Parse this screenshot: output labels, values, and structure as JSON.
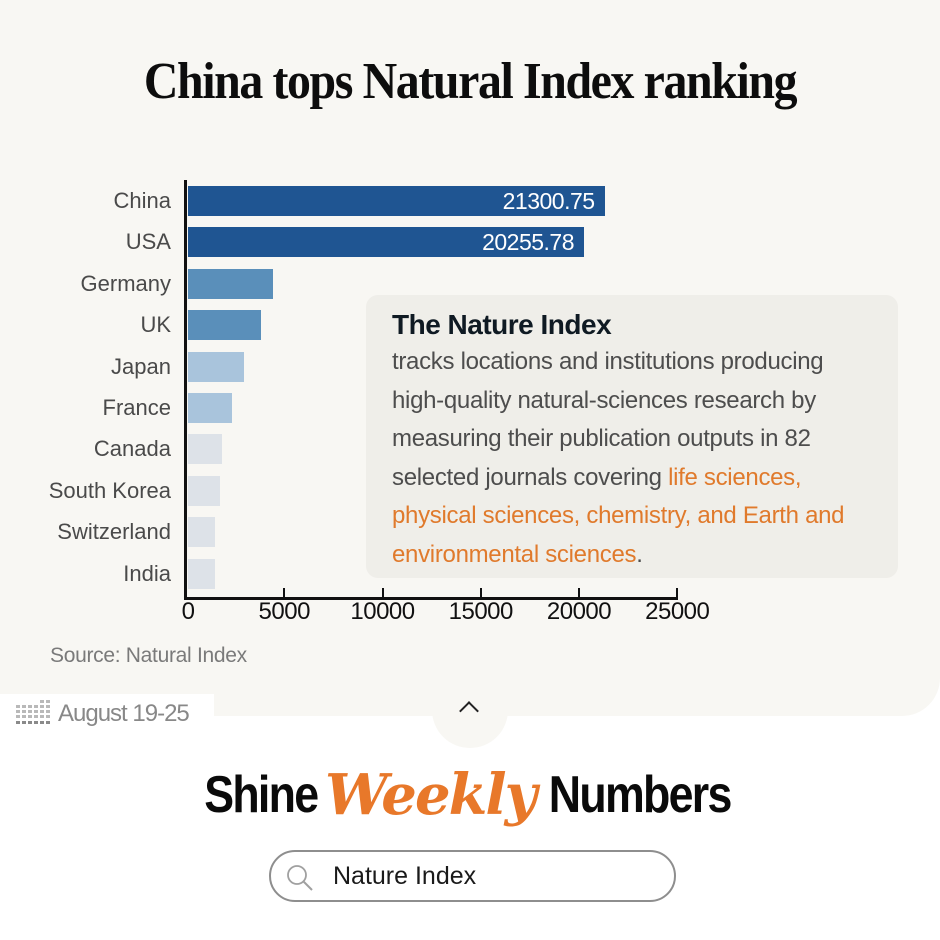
{
  "title": "China tops Natural Index ranking",
  "chart_data": {
    "type": "bar",
    "orientation": "horizontal",
    "title": "China tops Natural Index ranking",
    "xlabel": "",
    "ylabel": "",
    "xlim": [
      0,
      25000
    ],
    "x_ticks": [
      "0",
      "5000",
      "10000",
      "15000",
      "20000",
      "25000"
    ],
    "categories": [
      "China",
      "USA",
      "Germany",
      "UK",
      "Japan",
      "France",
      "Canada",
      "South Korea",
      "Switzerland",
      "India"
    ],
    "values": [
      21300.75,
      20255.78,
      4430,
      3820,
      2950,
      2340,
      1830,
      1730,
      1480,
      1480
    ],
    "value_labels": [
      "21300.75",
      "20255.78",
      "",
      "",
      "",
      "",
      "",
      "",
      "",
      ""
    ],
    "colors": [
      "#1f5592",
      "#1f5592",
      "#5a8fba",
      "#5a8fba",
      "#a9c4dc",
      "#a9c4dc",
      "#dde2e8",
      "#dde2e8",
      "#dde2e8",
      "#dde2e8"
    ],
    "grid": false,
    "legend": null,
    "source": "Source:  Natural Index"
  },
  "info_box": {
    "title": "The Nature Index",
    "body_plain": "tracks locations and institutions producing high-quality natural-sciences research by measuring their publication outputs in 82 selected journals covering ",
    "body_highlight": "life sciences, physical sciences, chemistry, and Earth and environmental sciences",
    "body_end": ".",
    "highlight_color": "#e07a2c"
  },
  "footer": {
    "source": "Source:  Natural Index",
    "date_range": "August 19-25",
    "brand": {
      "shine": "Shine",
      "weekly": "Weekly",
      "numbers": "Numbers",
      "accent_color": "#e8782a"
    },
    "search": {
      "icon": "search-icon",
      "value": "Nature Index"
    },
    "collapse_icon": "chevron-up-icon"
  }
}
